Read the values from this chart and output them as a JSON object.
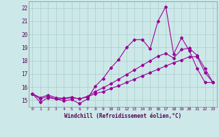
{
  "xlabel": "Windchill (Refroidissement éolien,°C)",
  "background_color": "#cce8e8",
  "grid_color": "#aacccc",
  "line_color": "#990099",
  "x_data": [
    0,
    1,
    2,
    3,
    4,
    5,
    6,
    7,
    8,
    9,
    10,
    11,
    12,
    13,
    14,
    15,
    16,
    17,
    18,
    19,
    20,
    21,
    22,
    23
  ],
  "series1": [
    15.5,
    14.85,
    15.2,
    15.1,
    14.95,
    15.05,
    14.75,
    15.1,
    16.05,
    16.65,
    17.45,
    18.1,
    19.0,
    19.6,
    19.6,
    18.9,
    21.0,
    22.1,
    18.5,
    19.75,
    18.75,
    17.4,
    16.35,
    16.35
  ],
  "series2": [
    15.5,
    15.1,
    15.3,
    15.1,
    15.1,
    15.2,
    15.1,
    15.25,
    15.5,
    15.65,
    15.9,
    16.1,
    16.35,
    16.6,
    16.85,
    17.1,
    17.35,
    17.6,
    17.85,
    18.05,
    18.3,
    18.3,
    17.1,
    16.35
  ],
  "series3": [
    15.5,
    15.2,
    15.4,
    15.2,
    15.15,
    15.25,
    15.1,
    15.3,
    15.65,
    15.95,
    16.25,
    16.6,
    16.95,
    17.3,
    17.65,
    18.0,
    18.35,
    18.55,
    18.2,
    18.85,
    18.95,
    18.4,
    17.4,
    16.35
  ],
  "ylim": [
    14.5,
    22.5
  ],
  "xlim": [
    -0.5,
    23.5
  ],
  "yticks": [
    15,
    16,
    17,
    18,
    19,
    20,
    21,
    22
  ],
  "xticks": [
    0,
    1,
    2,
    3,
    4,
    5,
    6,
    7,
    8,
    9,
    10,
    11,
    12,
    13,
    14,
    15,
    16,
    17,
    18,
    19,
    20,
    21,
    22,
    23
  ]
}
